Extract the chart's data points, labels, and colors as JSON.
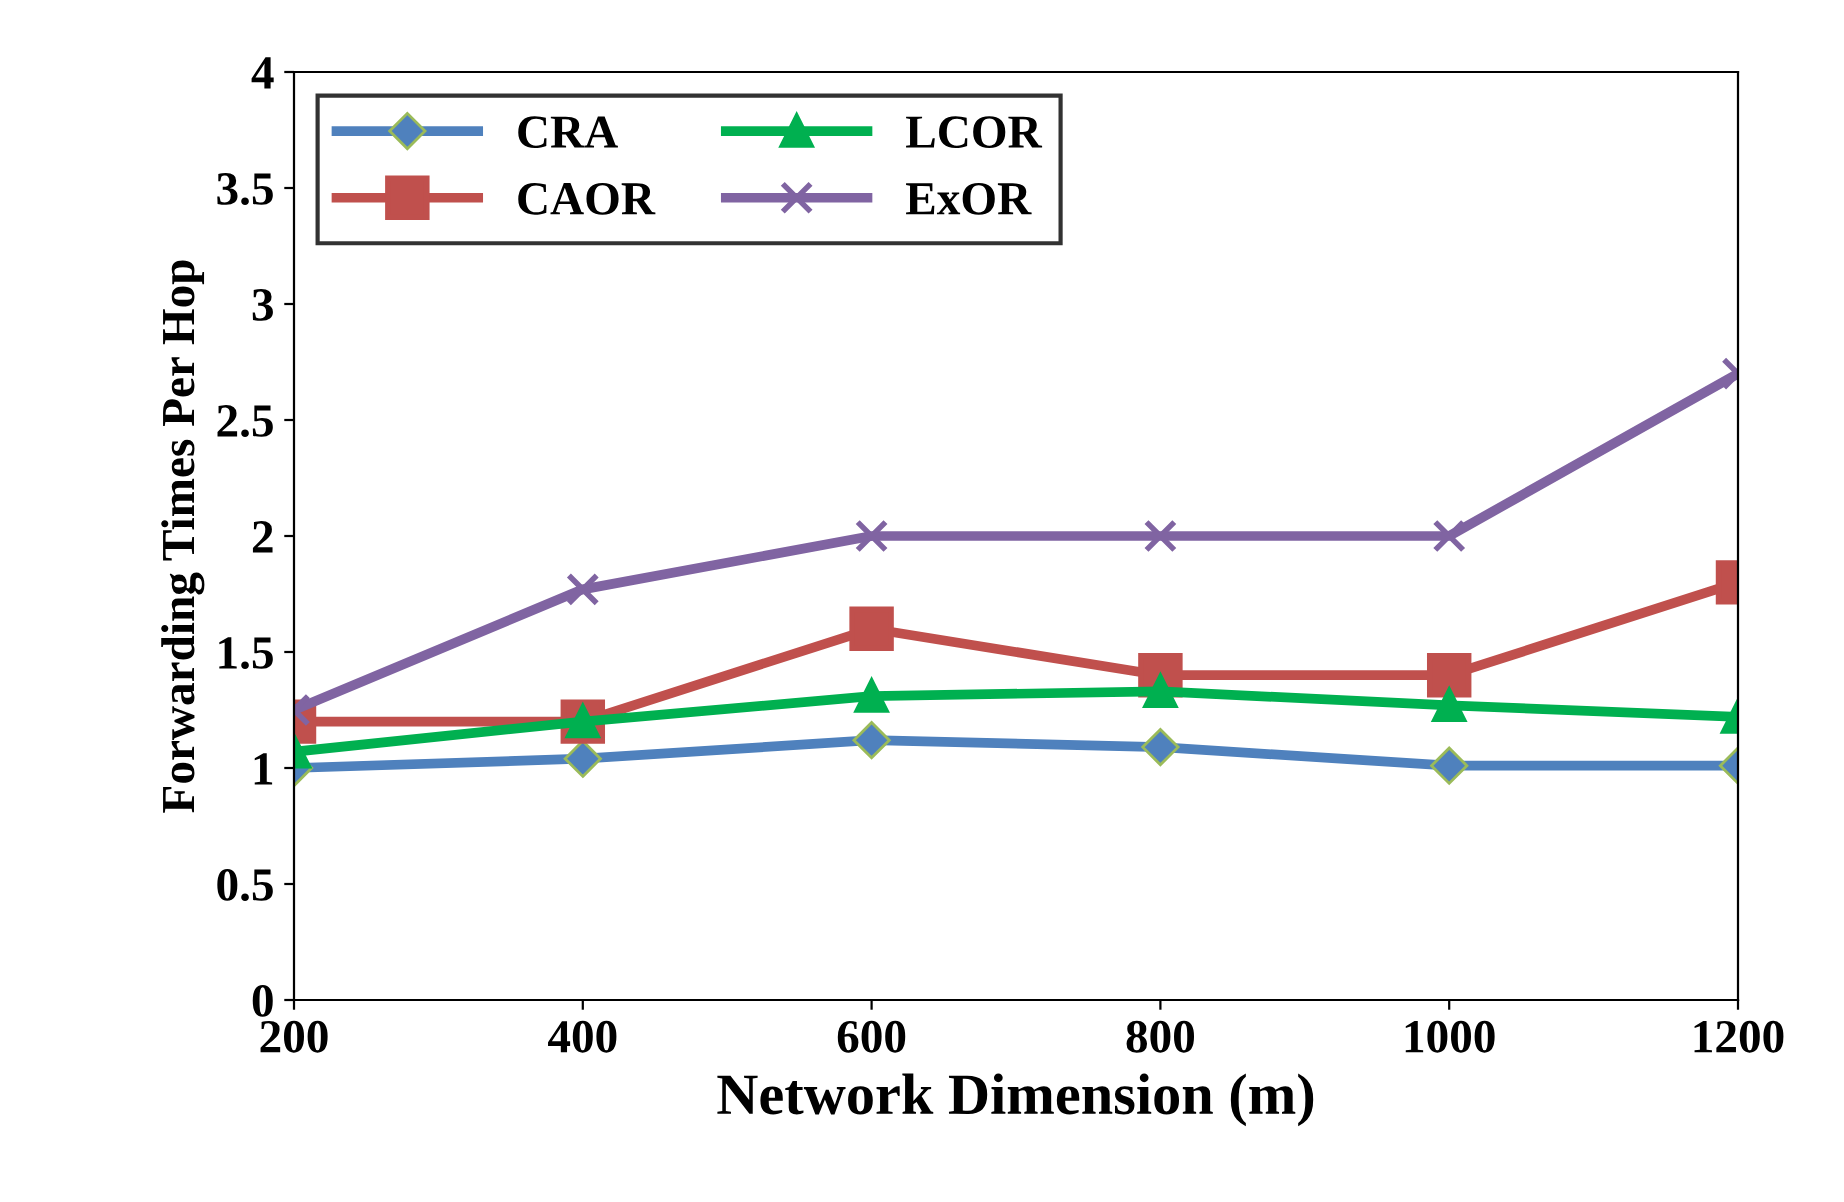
{
  "chart_data": {
    "type": "line",
    "xlabel": "Network Dimension (m)",
    "ylabel": "Forwarding Times Per Hop",
    "x": [
      200,
      400,
      600,
      800,
      1000,
      1200
    ],
    "series": [
      {
        "name": "CRA",
        "color": "#4f81bd",
        "marker": "diamond",
        "values": [
          1.0,
          1.04,
          1.12,
          1.09,
          1.01,
          1.01
        ]
      },
      {
        "name": "CAOR",
        "color": "#c0504d",
        "marker": "square",
        "values": [
          1.2,
          1.2,
          1.6,
          1.4,
          1.4,
          1.8
        ]
      },
      {
        "name": "LCOR",
        "color": "#00b050",
        "marker": "triangle",
        "values": [
          1.07,
          1.2,
          1.31,
          1.33,
          1.27,
          1.22
        ]
      },
      {
        "name": "ExOR",
        "color": "#8064a2",
        "marker": "cross",
        "values": [
          1.25,
          1.77,
          2.0,
          2.0,
          2.0,
          2.7
        ]
      }
    ],
    "xlim": [
      200,
      1200
    ],
    "xticks": [
      200,
      400,
      600,
      800,
      1000,
      1200
    ],
    "ylim": [
      0,
      4
    ],
    "yticks": [
      0,
      0.5,
      1,
      1.5,
      2,
      2.5,
      3,
      3.5,
      4
    ],
    "grid": false,
    "legend": "top left",
    "line_style": "solid"
  }
}
